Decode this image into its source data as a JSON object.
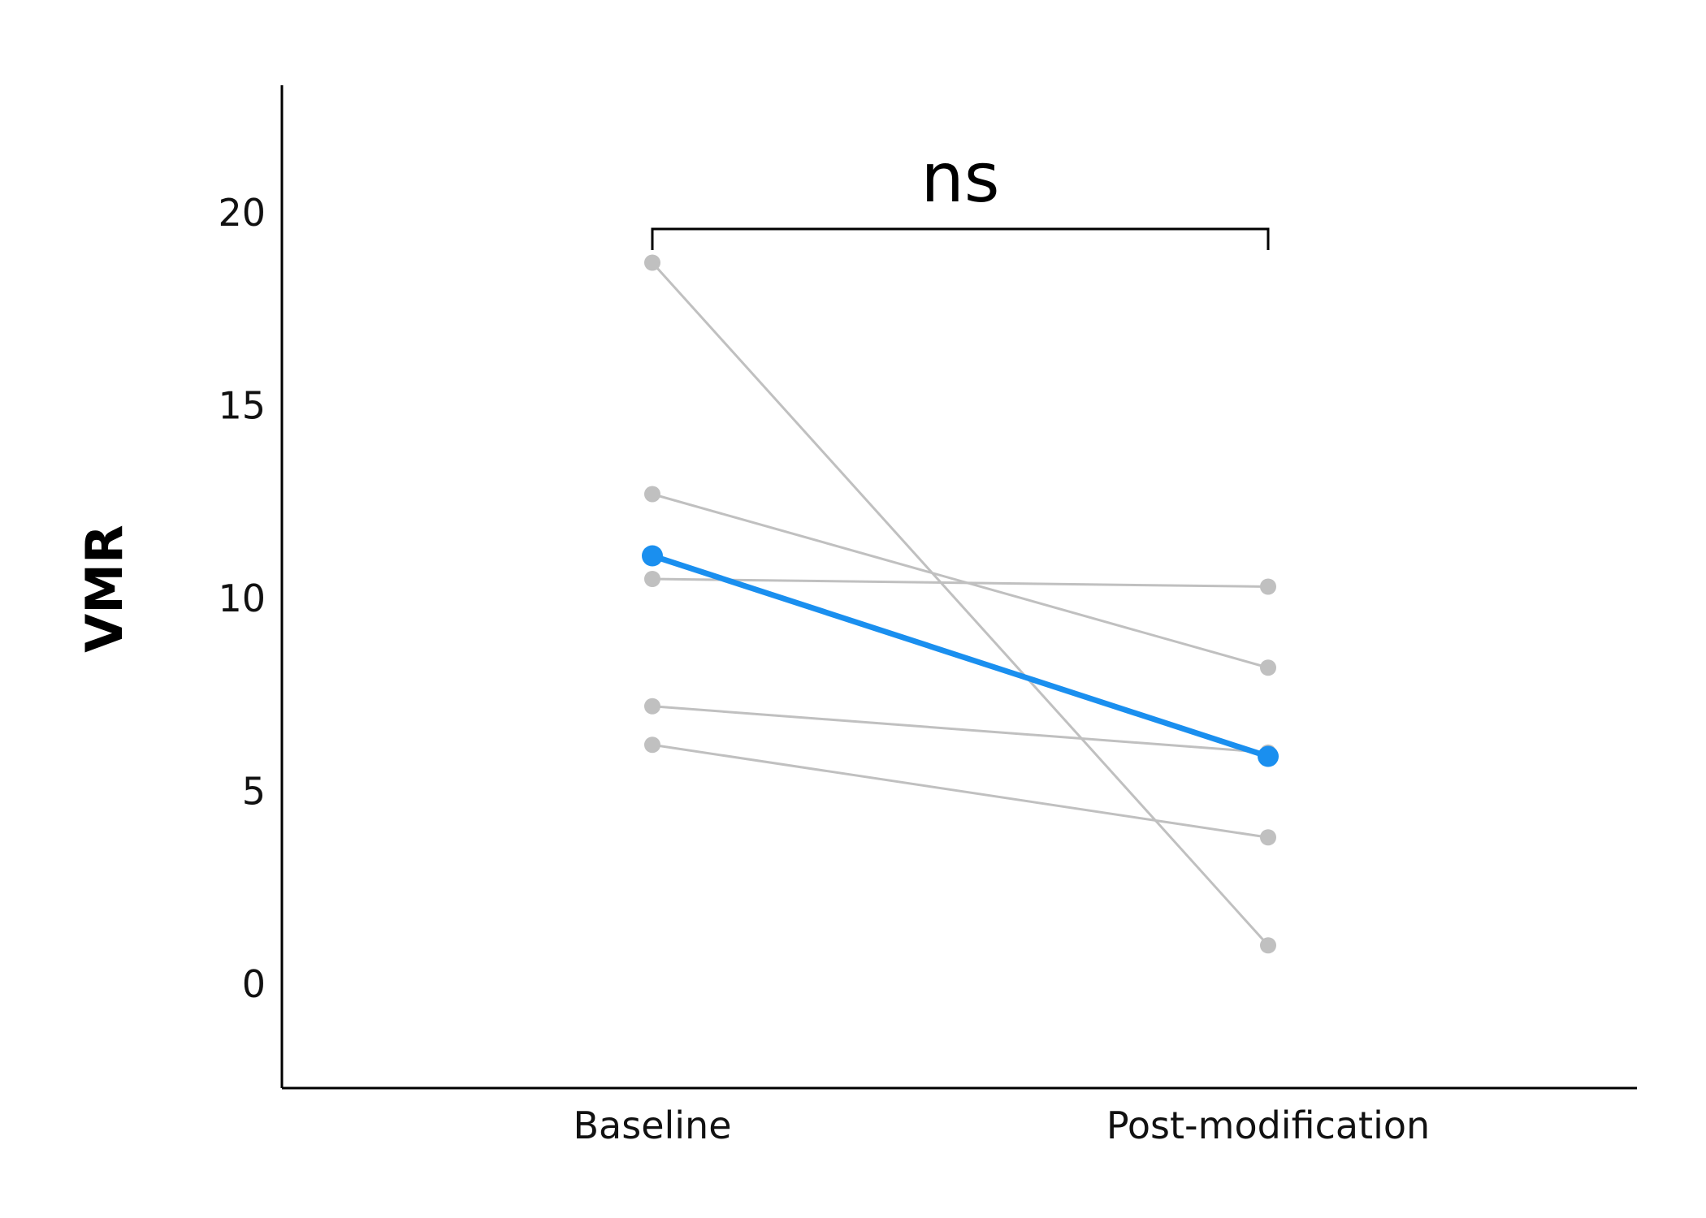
{
  "chart_data": {
    "type": "line",
    "categories": [
      "Baseline",
      "Post-modification"
    ],
    "ylabel": "VMR",
    "xlabel": "",
    "ylim": [
      -2.7,
      23.3
    ],
    "yticks": [
      0,
      5,
      10,
      15,
      20
    ],
    "series": [
      {
        "values": [
          18.7,
          1.0
        ],
        "color": "#c0c0c0",
        "highlight": false
      },
      {
        "values": [
          12.7,
          8.2
        ],
        "color": "#c0c0c0",
        "highlight": false
      },
      {
        "values": [
          10.5,
          10.3
        ],
        "color": "#c0c0c0",
        "highlight": false
      },
      {
        "values": [
          7.2,
          6.0
        ],
        "color": "#c0c0c0",
        "highlight": false
      },
      {
        "values": [
          6.2,
          3.8
        ],
        "color": "#c0c0c0",
        "highlight": false
      },
      {
        "values": [
          11.1,
          5.9
        ],
        "color": "#1a8fef",
        "highlight": true
      }
    ],
    "annotation": {
      "text": "ns",
      "from": "Baseline",
      "to": "Post-modification"
    },
    "grid": false,
    "legend": "none"
  }
}
